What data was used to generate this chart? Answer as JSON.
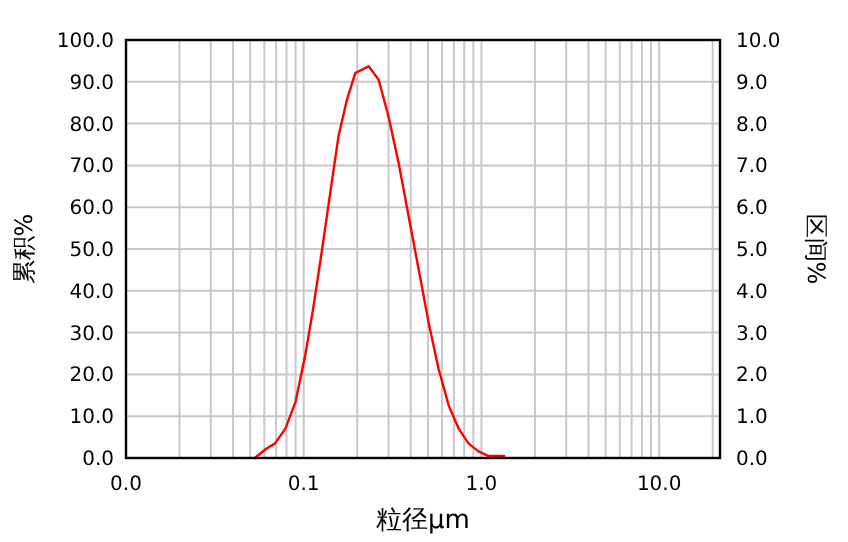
{
  "chart_data": {
    "type": "line",
    "xlabel": "粒径μm",
    "ylabel": "累积%",
    "y2label": "区间%",
    "log": "x",
    "grid": true,
    "marker": "none",
    "line_style": "solid",
    "xlim": [
      0.01,
      22
    ],
    "xticks": [
      {
        "value": 0.01,
        "label": "0.0"
      },
      {
        "value": 0.1,
        "label": "0.1"
      },
      {
        "value": 1,
        "label": "1.0"
      },
      {
        "value": 10,
        "label": "10.0"
      }
    ],
    "ylim": [
      0,
      100
    ],
    "yticks": [
      {
        "value": 0,
        "label": "0.0"
      },
      {
        "value": 10,
        "label": "10.0"
      },
      {
        "value": 20,
        "label": "20.0"
      },
      {
        "value": 30,
        "label": "30.0"
      },
      {
        "value": 40,
        "label": "40.0"
      },
      {
        "value": 50,
        "label": "50.0"
      },
      {
        "value": 60,
        "label": "60.0"
      },
      {
        "value": 70,
        "label": "70.0"
      },
      {
        "value": 80,
        "label": "80.0"
      },
      {
        "value": 90,
        "label": "90.0"
      },
      {
        "value": 100,
        "label": "100.0"
      }
    ],
    "y2lim": [
      0,
      10
    ],
    "y2ticks": [
      {
        "value": 0,
        "label": "0.0"
      },
      {
        "value": 1,
        "label": "1.0"
      },
      {
        "value": 2,
        "label": "2.0"
      },
      {
        "value": 3,
        "label": "3.0"
      },
      {
        "value": 4,
        "label": "4.0"
      },
      {
        "value": 5,
        "label": "5.0"
      },
      {
        "value": 6,
        "label": "6.0"
      },
      {
        "value": 7,
        "label": "7.0"
      },
      {
        "value": 8,
        "label": "8.0"
      },
      {
        "value": 9,
        "label": "9.0"
      },
      {
        "value": 10,
        "label": "10.0"
      }
    ],
    "series": [
      {
        "color": "#ff0000",
        "axis": "y2",
        "x": [
          0.053,
          0.061,
          0.069,
          0.079,
          0.09,
          0.102,
          0.113,
          0.127,
          0.142,
          0.157,
          0.175,
          0.195,
          0.232,
          0.264,
          0.3,
          0.342,
          0.389,
          0.443,
          0.504,
          0.573,
          0.653,
          0.743,
          0.845,
          0.962,
          1.09,
          1.34
        ],
        "values": [
          0,
          0.21,
          0.35,
          0.71,
          1.35,
          2.46,
          3.57,
          5.0,
          6.43,
          7.7,
          8.57,
          9.21,
          9.37,
          9.05,
          8.17,
          7.06,
          5.79,
          4.52,
          3.25,
          2.14,
          1.27,
          0.71,
          0.35,
          0.16,
          0.05,
          0.05
        ]
      }
    ]
  }
}
